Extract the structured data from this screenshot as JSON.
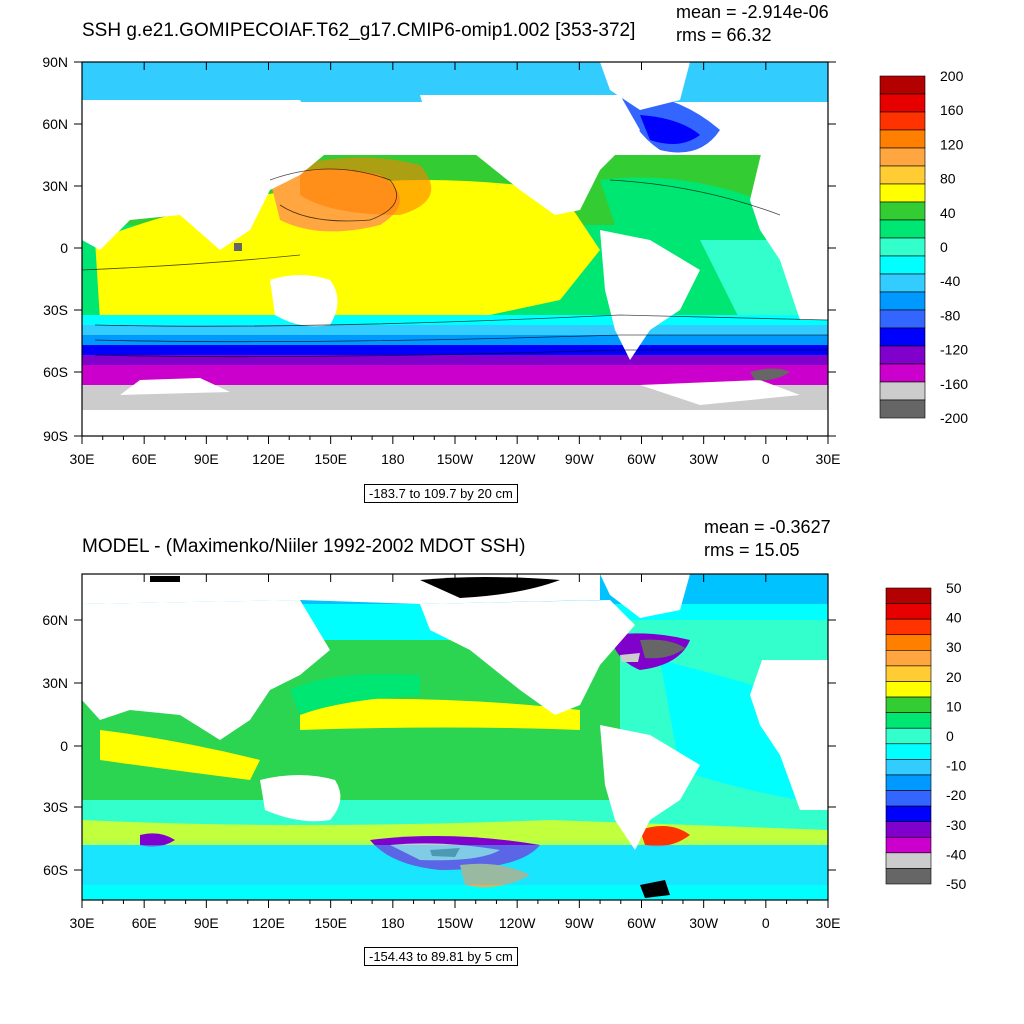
{
  "panels": [
    {
      "title": "SSH g.e21.GOMIPECOIAF.T62_g17.CMIP6-omip1.002 [353-372]",
      "mean": "mean = -2.914e-06",
      "rms": "rms = 66.32",
      "range_label": "-183.7 to 109.7 by 20 cm",
      "lat_ticks": [
        "90N",
        "60N",
        "30N",
        "0",
        "30S",
        "60S",
        "90S"
      ],
      "lon_ticks": [
        "30E",
        "60E",
        "90E",
        "120E",
        "150E",
        "180",
        "150W",
        "120W",
        "90W",
        "60W",
        "30W",
        "0",
        "30E"
      ],
      "colorbar": {
        "labels": [
          "200",
          "160",
          "120",
          "80",
          "40",
          "0",
          "-40",
          "-80",
          "-120",
          "-160",
          "-200"
        ],
        "colors": [
          "#b30000",
          "#e60000",
          "#ff3300",
          "#ff8000",
          "#ffa640",
          "#ffcc33",
          "#ffff00",
          "#33cc33",
          "#00e673",
          "#33ffcc",
          "#00ffff",
          "#33ccff",
          "#0099ff",
          "#3366ff",
          "#0000ff",
          "#8000cc",
          "#cc00cc",
          "#cccccc",
          "#666666"
        ]
      }
    },
    {
      "title": "MODEL - (Maximenko/Niiler 1992-2002 MDOT SSH)",
      "mean": "mean = -0.3627",
      "rms": "rms = 15.05",
      "range_label": "-154.43 to 89.81 by 5 cm",
      "lat_ticks": [
        "60N",
        "30N",
        "0",
        "30S",
        "60S"
      ],
      "lon_ticks": [
        "30E",
        "60E",
        "90E",
        "120E",
        "150E",
        "180",
        "150W",
        "120W",
        "90W",
        "60W",
        "30W",
        "0",
        "30E"
      ],
      "colorbar": {
        "labels": [
          "50",
          "40",
          "30",
          "20",
          "10",
          "0",
          "-10",
          "-20",
          "-30",
          "-40",
          "-50"
        ],
        "colors": [
          "#b30000",
          "#e60000",
          "#ff3300",
          "#ff8000",
          "#ffa640",
          "#ffcc33",
          "#ffff00",
          "#33cc33",
          "#00e673",
          "#33ffcc",
          "#00ffff",
          "#33ccff",
          "#0099ff",
          "#3366ff",
          "#0000ff",
          "#8000cc",
          "#cc00cc",
          "#cccccc",
          "#666666"
        ]
      }
    }
  ]
}
